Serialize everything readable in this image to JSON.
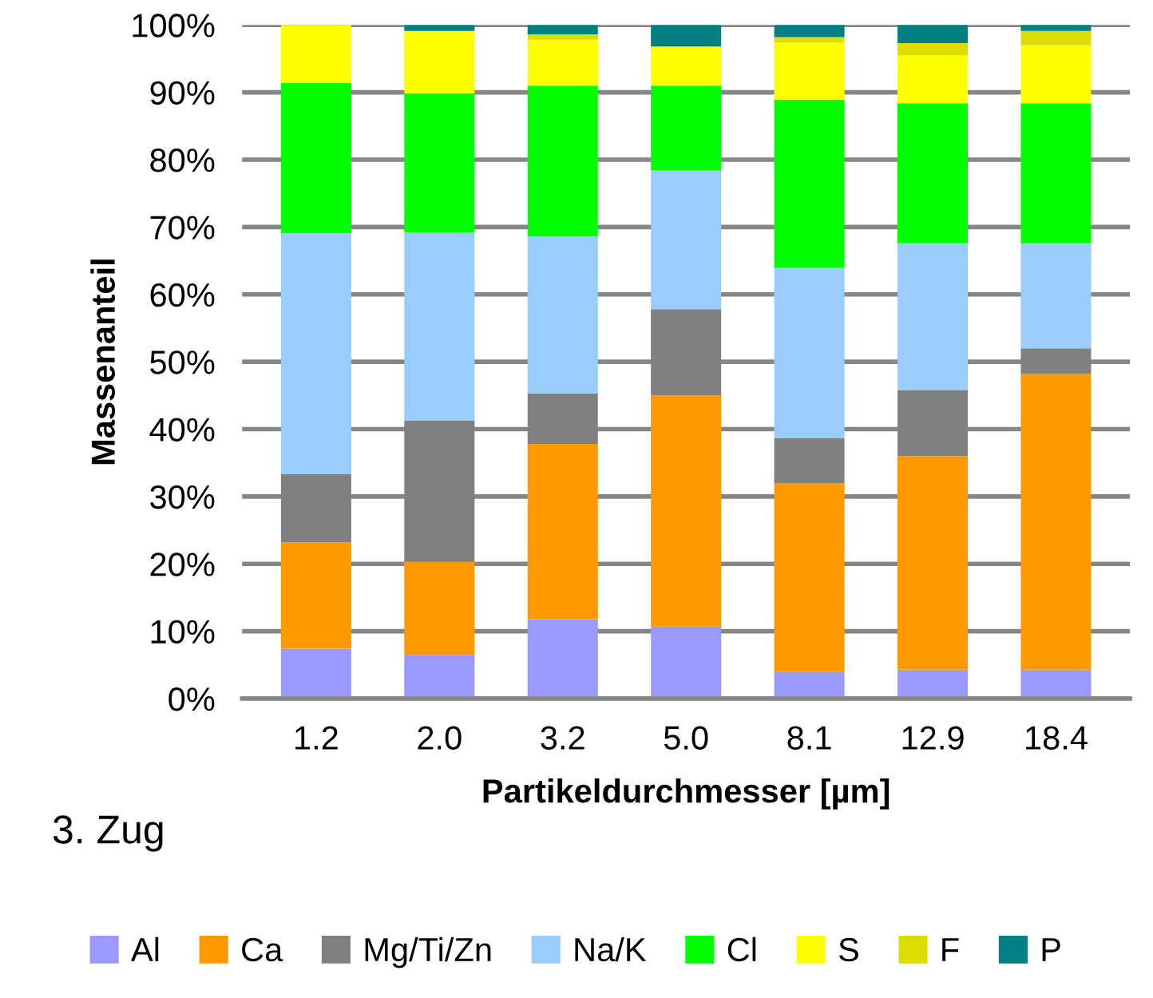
{
  "chart_data": {
    "type": "bar",
    "stacked": true,
    "xlabel": "Partikeldurchmesser [µm]",
    "ylabel": "Massenanteil",
    "categories": [
      "1.2",
      "2.0",
      "3.2",
      "5.0",
      "8.1",
      "12.9",
      "18.4"
    ],
    "series": [
      {
        "name": "Al",
        "color": "#9999ff",
        "values": [
          7.4,
          6.5,
          11.8,
          10.7,
          4.0,
          4.3,
          4.3
        ]
      },
      {
        "name": "Ca",
        "color": "#ff9900",
        "values": [
          15.8,
          13.8,
          26.0,
          34.3,
          28.0,
          31.7,
          43.9
        ]
      },
      {
        "name": "Mg/Ti/Zn",
        "color": "#808080",
        "values": [
          10.1,
          21.0,
          7.5,
          12.8,
          6.7,
          9.8,
          3.8
        ]
      },
      {
        "name": "Na/K",
        "color": "#99ccff",
        "values": [
          35.8,
          27.9,
          23.3,
          20.6,
          25.3,
          21.8,
          15.6
        ]
      },
      {
        "name": "Cl",
        "color": "#00ff00",
        "values": [
          22.3,
          20.6,
          22.4,
          12.6,
          24.9,
          20.8,
          20.8
        ]
      },
      {
        "name": "S",
        "color": "#ffff00",
        "values": [
          8.6,
          9.3,
          6.8,
          5.8,
          8.5,
          7.1,
          8.6
        ]
      },
      {
        "name": "F",
        "color": "#dddd00",
        "values": [
          0,
          0,
          0.8,
          0,
          0.8,
          1.8,
          2.1
        ]
      },
      {
        "name": "P",
        "color": "#008080",
        "values": [
          0,
          0.9,
          1.4,
          3.2,
          1.8,
          2.7,
          0.9
        ]
      }
    ],
    "ylim": [
      0,
      100
    ],
    "yticks": [
      {
        "value": 0,
        "label": "0%"
      },
      {
        "value": 10,
        "label": "10%"
      },
      {
        "value": 20,
        "label": "20%"
      },
      {
        "value": 30,
        "label": "30%"
      },
      {
        "value": 40,
        "label": "40%"
      },
      {
        "value": 50,
        "label": "50%"
      },
      {
        "value": 60,
        "label": "60%"
      },
      {
        "value": 70,
        "label": "70%"
      },
      {
        "value": 80,
        "label": "80%"
      },
      {
        "value": 90,
        "label": "90%"
      },
      {
        "value": 100,
        "label": "100%"
      }
    ],
    "grid": "y",
    "legend": "bottom",
    "annotations": [
      "3. Zug"
    ]
  }
}
